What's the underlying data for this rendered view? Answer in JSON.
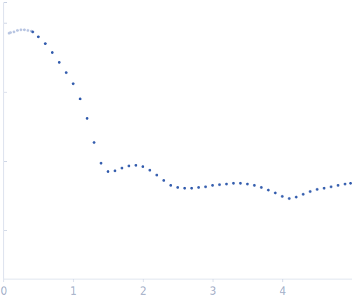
{
  "chart_data": {
    "type": "scatter",
    "xlim": [
      0,
      5
    ],
    "xticks": [
      0,
      1,
      2,
      3,
      4
    ],
    "ylim": [
      0.3,
      4.3
    ],
    "yticks": [
      1,
      2,
      3,
      4
    ],
    "tick_labels": "x",
    "grid": false,
    "series": [
      {
        "color": "#b9c6e2",
        "marker": "circle",
        "x": [
          0.08,
          0.1,
          0.15,
          0.2,
          0.25,
          0.3,
          0.35,
          0.4
        ],
        "values": [
          3.85,
          3.86,
          3.87,
          3.89,
          3.9,
          3.9,
          3.89,
          3.88
        ]
      },
      {
        "color": "#3a62b0",
        "marker": "circle",
        "x": [
          0.42,
          0.5,
          0.6,
          0.7,
          0.8,
          0.9,
          1.0,
          1.1,
          1.2,
          1.3,
          1.4,
          1.5,
          1.6,
          1.7,
          1.8,
          1.9,
          2.0,
          2.1,
          2.2,
          2.3,
          2.4,
          2.5,
          2.6,
          2.7,
          2.8,
          2.9,
          3.0,
          3.1,
          3.2,
          3.3,
          3.4,
          3.5,
          3.6,
          3.7,
          3.8,
          3.9,
          4.0,
          4.1,
          4.2,
          4.3,
          4.4,
          4.5,
          4.6,
          4.7,
          4.8,
          4.9,
          4.98
        ],
        "values": [
          3.87,
          3.8,
          3.7,
          3.57,
          3.43,
          3.28,
          3.12,
          2.9,
          2.62,
          2.27,
          1.97,
          1.85,
          1.86,
          1.9,
          1.93,
          1.94,
          1.92,
          1.87,
          1.8,
          1.72,
          1.65,
          1.62,
          1.61,
          1.61,
          1.62,
          1.63,
          1.65,
          1.66,
          1.67,
          1.68,
          1.68,
          1.67,
          1.65,
          1.62,
          1.58,
          1.54,
          1.49,
          1.46,
          1.48,
          1.52,
          1.56,
          1.59,
          1.61,
          1.63,
          1.65,
          1.67,
          1.68
        ]
      }
    ]
  }
}
